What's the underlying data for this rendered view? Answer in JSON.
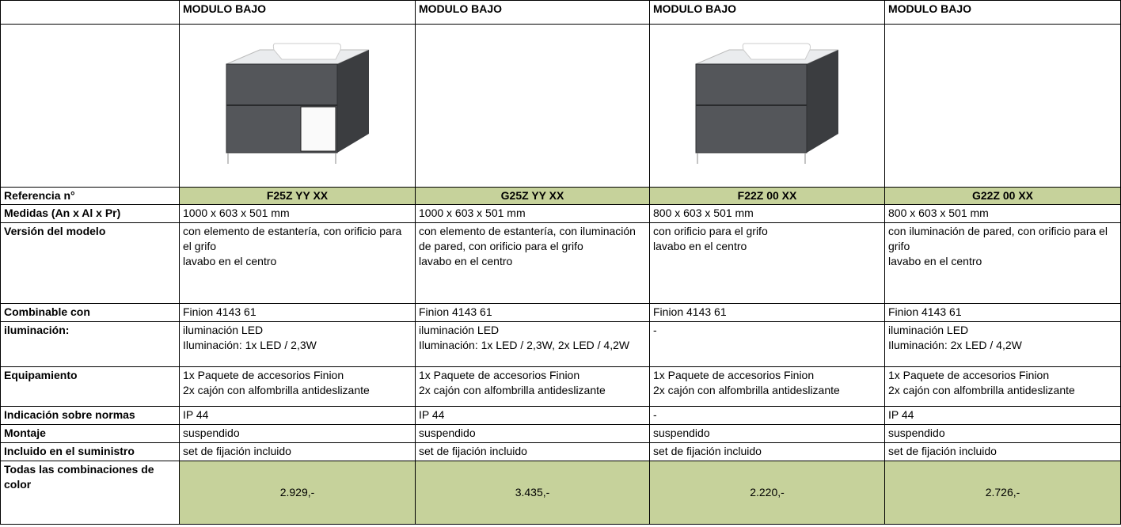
{
  "header": {
    "columns": [
      "MODULO BAJO",
      "MODULO BAJO",
      "MODULO BAJO",
      "MODULO BAJO"
    ]
  },
  "table": {
    "rows": [
      {
        "label": "Referencia n°",
        "cells": [
          [
            "F25Z YY XX"
          ],
          [
            "G25Z YY XX"
          ],
          [
            "F22Z 00 XX"
          ],
          [
            "G22Z 00 XX"
          ]
        ]
      },
      {
        "label": "Medidas (An x Al x Pr)",
        "cells": [
          [
            "1000 x 603 x 501 mm"
          ],
          [
            "1000 x 603 x 501 mm"
          ],
          [
            "800 x 603 x 501 mm"
          ],
          [
            "800 x 603 x 501 mm"
          ]
        ]
      },
      {
        "label": "Versión del modelo",
        "cells": [
          [
            "con elemento de estantería, con orificio para el grifo",
            "lavabo en el centro"
          ],
          [
            "con elemento de estantería, con iluminación de pared, con orificio para el grifo",
            "lavabo en el centro"
          ],
          [
            "con orificio para el grifo",
            "lavabo en el centro"
          ],
          [
            "con iluminación de pared, con orificio para el grifo",
            "lavabo en el centro"
          ]
        ]
      },
      {
        "label": "Combinable con",
        "cells": [
          [
            "Finion 4143 61"
          ],
          [
            "Finion 4143 61"
          ],
          [
            "Finion 4143 61"
          ],
          [
            "Finion 4143 61"
          ]
        ]
      },
      {
        "label": "iluminación:",
        "cells": [
          [
            "iluminación LED",
            "Iluminación: 1x LED / 2,3W"
          ],
          [
            "iluminación LED",
            "Iluminación: 1x LED / 2,3W, 2x LED / 4,2W"
          ],
          [
            "-"
          ],
          [
            "iluminación LED",
            "Iluminación: 2x LED / 4,2W"
          ]
        ]
      },
      {
        "label": "Equipamiento",
        "cells": [
          [
            "1x Paquete de accesorios Finion",
            "2x cajón con alfombrilla antideslizante"
          ],
          [
            "1x Paquete de accesorios Finion",
            "2x cajón con alfombrilla antideslizante"
          ],
          [
            "1x Paquete de accesorios Finion",
            "2x cajón con alfombrilla antideslizante"
          ],
          [
            "1x Paquete de accesorios Finion",
            "2x cajón con alfombrilla antideslizante"
          ]
        ]
      },
      {
        "label": "Indicación sobre normas",
        "cells": [
          [
            "IP 44"
          ],
          [
            "IP 44"
          ],
          [
            "-"
          ],
          [
            "IP 44"
          ]
        ]
      },
      {
        "label": "Montaje",
        "cells": [
          [
            "suspendido"
          ],
          [
            "suspendido"
          ],
          [
            "suspendido"
          ],
          [
            "suspendido"
          ]
        ]
      },
      {
        "label": "Incluido en el suministro",
        "cells": [
          [
            "set de fijación incluido"
          ],
          [
            "set de fijación incluido"
          ],
          [
            "set de fijación incluido"
          ],
          [
            "set de fijación incluido"
          ]
        ]
      },
      {
        "label": "Todas las combinaciones de color",
        "cells": [
          [
            "2.929,-"
          ],
          [
            "3.435,-"
          ],
          [
            "2.220,-"
          ],
          [
            "2.726,-"
          ]
        ]
      }
    ]
  }
}
